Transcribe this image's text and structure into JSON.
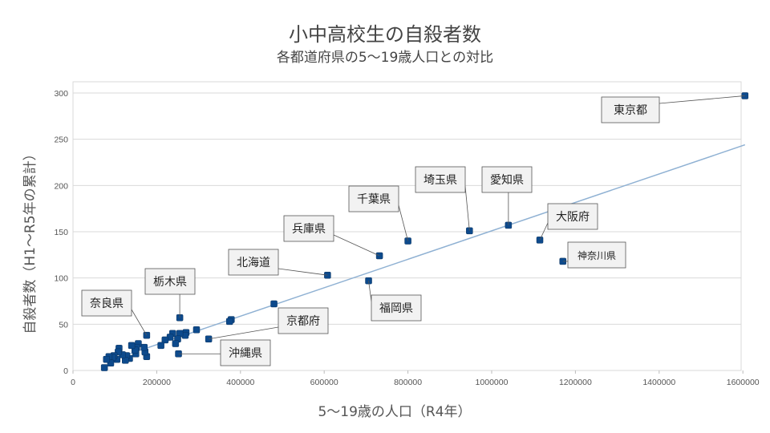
{
  "chart_data": {
    "type": "scatter",
    "title": "小中高校生の自殺者数",
    "subtitle": "各都道府県の5〜19歳人口との対比",
    "xlabel": "5〜19歳の人口（R4年）",
    "ylabel": "自殺者数（H1〜R5年の累計）",
    "xlim": [
      0,
      1700000
    ],
    "ylim": [
      0,
      310
    ],
    "xticks": [
      0,
      200000,
      400000,
      600000,
      800000,
      1000000,
      1200000,
      1400000,
      1600000
    ],
    "yticks": [
      0,
      50,
      100,
      150,
      200,
      250,
      300
    ],
    "grid": "horizontal",
    "marker_color": "#0d4a8c",
    "trendline_color": "#8fb1d3",
    "trendline": {
      "x": [
        90000,
        1605000
      ],
      "y": [
        11,
        244
      ]
    },
    "points": [
      {
        "x": 1605000,
        "y": 297,
        "label": "東京都"
      },
      {
        "x": 1170000,
        "y": 118,
        "label": "神奈川県"
      },
      {
        "x": 1115000,
        "y": 141,
        "label": "大阪府"
      },
      {
        "x": 1040000,
        "y": 157,
        "label": "愛知県"
      },
      {
        "x": 947000,
        "y": 151,
        "label": "埼玉県"
      },
      {
        "x": 800000,
        "y": 140,
        "label": "千葉県"
      },
      {
        "x": 732000,
        "y": 124,
        "label": "兵庫県"
      },
      {
        "x": 706000,
        "y": 97,
        "label": "福岡県"
      },
      {
        "x": 608000,
        "y": 103,
        "label": "北海道"
      },
      {
        "x": 480000,
        "y": 72
      },
      {
        "x": 378000,
        "y": 55
      },
      {
        "x": 374000,
        "y": 53
      },
      {
        "x": 324000,
        "y": 34,
        "label": "京都府"
      },
      {
        "x": 295000,
        "y": 44
      },
      {
        "x": 270000,
        "y": 41
      },
      {
        "x": 268000,
        "y": 38
      },
      {
        "x": 255000,
        "y": 57,
        "label": "栃木県"
      },
      {
        "x": 255000,
        "y": 40
      },
      {
        "x": 252000,
        "y": 18,
        "label": "沖縄県"
      },
      {
        "x": 250000,
        "y": 34
      },
      {
        "x": 245000,
        "y": 29
      },
      {
        "x": 238000,
        "y": 40
      },
      {
        "x": 232000,
        "y": 36
      },
      {
        "x": 220000,
        "y": 33
      },
      {
        "x": 210000,
        "y": 27
      },
      {
        "x": 176000,
        "y": 38,
        "label": "奈良県"
      },
      {
        "x": 176000,
        "y": 15
      },
      {
        "x": 172000,
        "y": 20
      },
      {
        "x": 170000,
        "y": 25
      },
      {
        "x": 156000,
        "y": 29
      },
      {
        "x": 152000,
        "y": 25
      },
      {
        "x": 150000,
        "y": 18
      },
      {
        "x": 148000,
        "y": 22
      },
      {
        "x": 140000,
        "y": 27
      },
      {
        "x": 135000,
        "y": 13
      },
      {
        "x": 128000,
        "y": 16
      },
      {
        "x": 125000,
        "y": 11
      },
      {
        "x": 118000,
        "y": 17
      },
      {
        "x": 110000,
        "y": 24
      },
      {
        "x": 108000,
        "y": 20
      },
      {
        "x": 105000,
        "y": 12
      },
      {
        "x": 98000,
        "y": 16
      },
      {
        "x": 95000,
        "y": 14
      },
      {
        "x": 90000,
        "y": 8
      },
      {
        "x": 86000,
        "y": 15
      },
      {
        "x": 80000,
        "y": 12
      },
      {
        "x": 75000,
        "y": 3
      }
    ]
  }
}
